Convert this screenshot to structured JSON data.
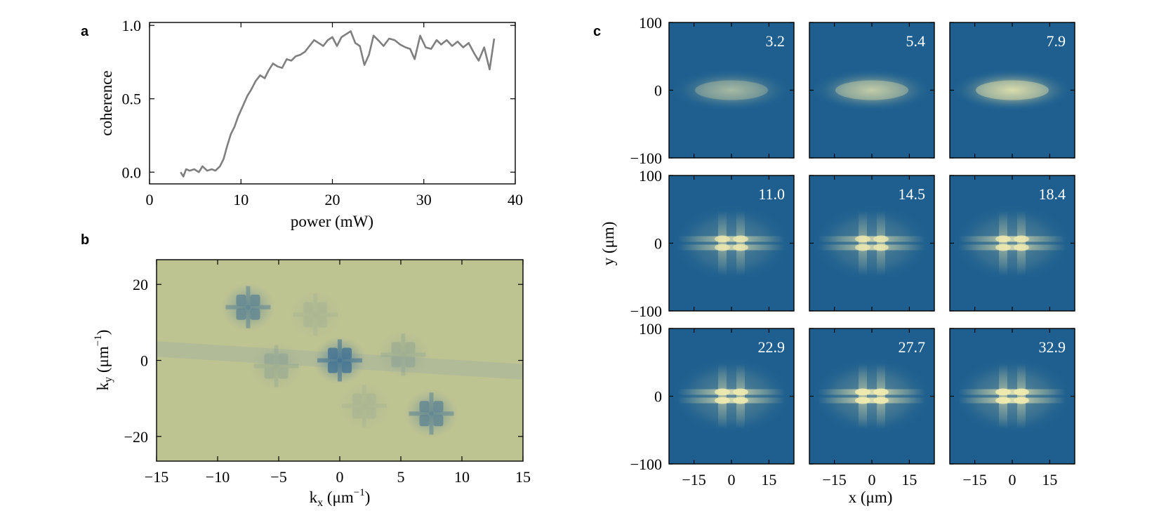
{
  "colors": {
    "line": "#7f7f7f",
    "map_bg": "#bec392",
    "map_spot": "#3d6f93",
    "img_bg": "#1e5f8f",
    "img_glow": "#f2ecb0",
    "axis": "#000000"
  },
  "panels": {
    "a": {
      "letter": "a"
    },
    "b": {
      "letter": "b"
    },
    "c": {
      "letter": "c"
    }
  },
  "chart_data": [
    {
      "type": "line",
      "panel": "a",
      "xlabel": "power (mW)",
      "ylabel": "coherence",
      "xlim": [
        0,
        40
      ],
      "ylim": [
        -0.08,
        1.02
      ],
      "xticks": [
        "0",
        "10",
        "20",
        "30",
        "40"
      ],
      "yticks": [
        "0.0",
        "0.5",
        "1.0"
      ],
      "x": [
        3.4,
        3.7,
        4.0,
        4.4,
        4.9,
        5.4,
        5.8,
        6.3,
        6.8,
        7.2,
        7.7,
        8.1,
        8.5,
        8.9,
        9.3,
        9.7,
        10.2,
        10.7,
        11.1,
        11.6,
        12.1,
        12.6,
        13.0,
        13.5,
        14.0,
        14.5,
        15.0,
        15.5,
        16.0,
        16.5,
        17.0,
        17.5,
        18.0,
        18.5,
        19.0,
        19.5,
        20.0,
        20.5,
        21.0,
        21.5,
        22.0,
        22.5,
        23.0,
        23.5,
        24.0,
        24.5,
        25.0,
        25.6,
        26.2,
        26.8,
        27.4,
        28.0,
        28.5,
        29.0,
        29.6,
        30.2,
        30.8,
        31.4,
        31.9,
        32.5,
        33.1,
        33.7,
        34.3,
        34.9,
        35.5,
        36.0,
        36.6,
        37.2,
        37.7
      ],
      "y": [
        0.0,
        -0.03,
        0.02,
        0.01,
        0.02,
        0.0,
        0.04,
        0.01,
        0.02,
        0.01,
        0.04,
        0.09,
        0.18,
        0.26,
        0.31,
        0.38,
        0.45,
        0.52,
        0.56,
        0.62,
        0.66,
        0.64,
        0.69,
        0.74,
        0.72,
        0.71,
        0.77,
        0.76,
        0.79,
        0.8,
        0.82,
        0.86,
        0.9,
        0.88,
        0.86,
        0.9,
        0.92,
        0.86,
        0.92,
        0.94,
        0.96,
        0.88,
        0.86,
        0.73,
        0.8,
        0.93,
        0.9,
        0.86,
        0.91,
        0.9,
        0.87,
        0.85,
        0.84,
        0.77,
        0.93,
        0.85,
        0.84,
        0.9,
        0.87,
        0.9,
        0.86,
        0.89,
        0.85,
        0.88,
        0.81,
        0.76,
        0.85,
        0.7,
        0.91
      ]
    },
    {
      "type": "heatmap",
      "panel": "b",
      "xlabel": "k",
      "xlabel_sub": "x",
      "xlabel_unit": " (μm",
      "xlabel_sup": "−1",
      "ylabel": "k",
      "ylabel_sub": "y",
      "ylabel_unit": " (μm",
      "ylabel_sup": "−1",
      "xlim": [
        -15,
        15
      ],
      "ylim": [
        -26.5,
        26.5
      ],
      "xticks": [
        "−15",
        "−10",
        "−5",
        "0",
        "5",
        "10",
        "15"
      ],
      "yticks": [
        "−20",
        "0",
        "20"
      ],
      "peaks": [
        {
          "kx": 0,
          "ky": 0,
          "strength": 1.0
        },
        {
          "kx": -7.5,
          "ky": 14,
          "strength": 0.75
        },
        {
          "kx": 7.5,
          "ky": -14,
          "strength": 0.75
        },
        {
          "kx": -5.2,
          "ky": -1.5,
          "strength": 0.25
        },
        {
          "kx": 5.2,
          "ky": 1.5,
          "strength": 0.25
        },
        {
          "kx": -2.0,
          "ky": 12,
          "strength": 0.15
        },
        {
          "kx": 2.0,
          "ky": -12,
          "strength": 0.15
        }
      ]
    },
    {
      "type": "heatmap",
      "panel": "c",
      "xlabel": "x (μm)",
      "ylabel": "y (μm)",
      "xlim": [
        -25,
        25
      ],
      "ylim": [
        -100,
        100
      ],
      "xticks": [
        "−15",
        "0",
        "15"
      ],
      "yticks": [
        "−100",
        "0",
        "100"
      ],
      "images": [
        {
          "label": "3.2",
          "pattern": "cloud",
          "brightness": 0.55
        },
        {
          "label": "5.4",
          "pattern": "cloud",
          "brightness": 0.7
        },
        {
          "label": "7.9",
          "pattern": "cloud",
          "brightness": 0.85
        },
        {
          "label": "11.0",
          "pattern": "lattice",
          "brightness": 0.8
        },
        {
          "label": "14.5",
          "pattern": "lattice",
          "brightness": 0.8
        },
        {
          "label": "18.4",
          "pattern": "lattice",
          "brightness": 0.85
        },
        {
          "label": "22.9",
          "pattern": "lattice",
          "brightness": 0.9
        },
        {
          "label": "27.7",
          "pattern": "lattice",
          "brightness": 0.95
        },
        {
          "label": "32.9",
          "pattern": "lattice",
          "brightness": 0.95
        }
      ]
    }
  ]
}
